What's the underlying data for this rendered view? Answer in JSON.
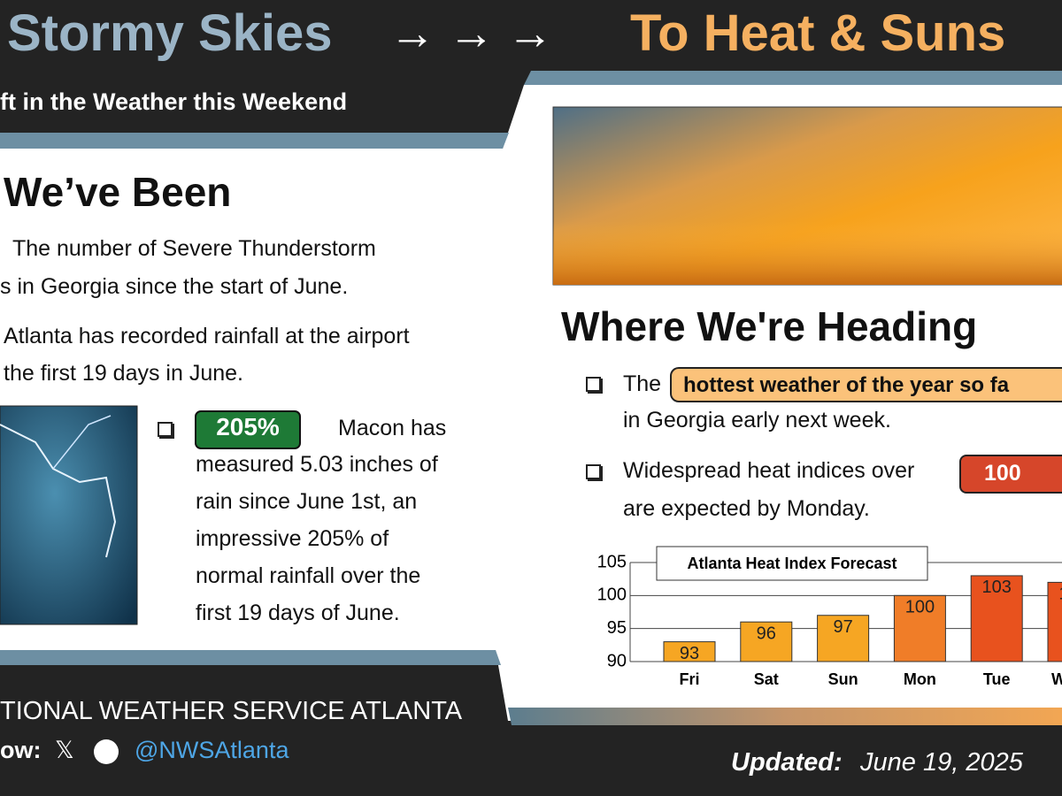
{
  "header": {
    "title_left": "Stormy Skies",
    "arrows": "→ → →",
    "title_right": "To Heat & Suns",
    "subtitle": "ft in the Weather this Weekend"
  },
  "left": {
    "heading": "We’ve Been",
    "item1": [
      "The number of Severe Thunderstorm",
      "s in Georgia since the start of June."
    ],
    "item2": [
      "Atlanta has recorded rainfall at the airport",
      "the first 19 days in June."
    ],
    "item3": {
      "badge": "205%",
      "lines": [
        "Macon has",
        "measured 5.03 inches of",
        "rain since June 1st, an",
        "impressive 205% of",
        "normal rainfall over the",
        "first 19 days of June."
      ]
    }
  },
  "right": {
    "heading": "Where We're Heading",
    "item1": {
      "lead": "The",
      "highlight": "hottest weather of the year so fa",
      "rest": "in Georgia early next week."
    },
    "item2": {
      "lead": "Widespread heat indices over",
      "badge": "100",
      "rest": "are expected by Monday."
    }
  },
  "chart_data": {
    "type": "bar",
    "title": "Atlanta Heat Index Forecast",
    "categories": [
      "Fri",
      "Sat",
      "Sun",
      "Mon",
      "Tue",
      "W"
    ],
    "values": [
      93,
      96,
      97,
      100,
      103,
      102
    ],
    "colors": [
      "#f6a623",
      "#f6a623",
      "#f6a623",
      "#f07d28",
      "#e8521e",
      "#e8521e"
    ],
    "ylim": [
      90,
      105
    ],
    "yticks": [
      90,
      95,
      100,
      105
    ],
    "grid": true
  },
  "footer": {
    "org": "TIONAL WEATHER SERVICE ATLANTA",
    "follow": "ow:",
    "handle": "@NWSAtlanta",
    "updated_label": "Updated:",
    "updated_date": "June 19, 2025"
  }
}
